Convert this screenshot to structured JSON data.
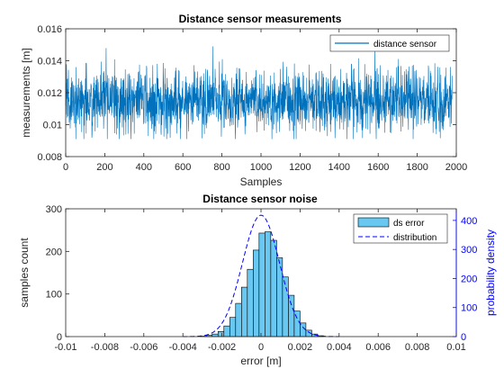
{
  "chart_data": [
    {
      "type": "line",
      "title": "Distance sensor measurements",
      "xlabel": "Samples",
      "ylabel": "measurements [m]",
      "xlim": [
        0,
        2000
      ],
      "ylim": [
        0.008,
        0.016
      ],
      "xticks": [
        0,
        200,
        400,
        600,
        800,
        1000,
        1200,
        1400,
        1600,
        1800,
        2000
      ],
      "yticks": [
        0.008,
        0.01,
        0.012,
        0.014,
        0.016
      ],
      "legend_position": "top-right",
      "grid": false,
      "series": [
        {
          "name": "distance sensor",
          "color": "#0072BD",
          "n_samples": 2000,
          "mean": 0.0115,
          "std": 0.001,
          "min": 0.0091,
          "max": 0.0149
        }
      ]
    },
    {
      "type": "bar",
      "title": "Distance sensor noise",
      "xlabel": "error [m]",
      "ylabel": "samples count",
      "ylabel_right": "probability density",
      "xlim": [
        -0.01,
        0.01
      ],
      "ylim": [
        0,
        300
      ],
      "ylim_right": [
        0,
        440
      ],
      "xticks": [
        -0.01,
        -0.008,
        -0.006,
        -0.004,
        -0.002,
        0,
        0.002,
        0.004,
        0.006,
        0.008,
        0.01
      ],
      "yticks": [
        0,
        100,
        200,
        300
      ],
      "yticks_right": [
        0,
        100,
        200,
        300,
        400
      ],
      "legend_position": "top-right",
      "grid": false,
      "bin_edges": [
        -0.0031,
        -0.0028,
        -0.0025,
        -0.0022,
        -0.0019,
        -0.0016,
        -0.0013,
        -0.001,
        -0.0007,
        -0.0004,
        -0.0001,
        0.0002,
        0.0005,
        0.0008,
        0.0011,
        0.0014,
        0.0017,
        0.002,
        0.0023,
        0.0026,
        0.0029,
        0.0032
      ],
      "counts": [
        1,
        3,
        6,
        12,
        25,
        45,
        78,
        116,
        158,
        203,
        243,
        246,
        226,
        185,
        140,
        97,
        60,
        32,
        15,
        6,
        2
      ],
      "series": [
        {
          "name": "ds error",
          "color": "#4DBEEE",
          "edge_color": "#000000"
        },
        {
          "name": "distribution",
          "color": "#0000FF",
          "dash": "dashed",
          "mean": 0.0,
          "std": 0.00095,
          "peak_density": 418
        }
      ]
    }
  ],
  "axis_color_right": "#0000FF"
}
